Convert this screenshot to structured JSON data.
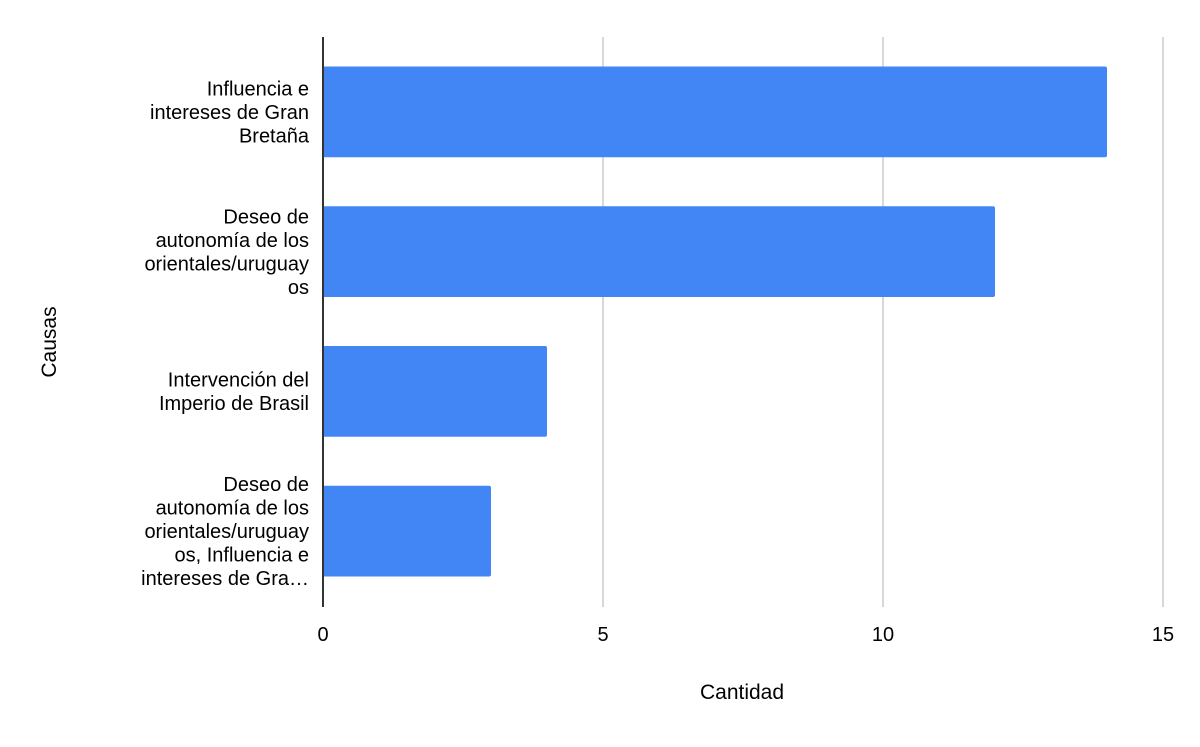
{
  "chart_data": {
    "type": "bar",
    "orientation": "horizontal",
    "xlabel": "Cantidad",
    "ylabel": "Causas",
    "xlim": [
      0,
      15
    ],
    "x_ticks": [
      "0",
      "5",
      "10",
      "15"
    ],
    "grid": "vertical",
    "legend": "none",
    "categories": [
      "Influencia e intereses de Gran Bretaña",
      "Deseo de autonomía de los orientales/uruguayos",
      "Intervención del Imperio de Brasil",
      "Deseo de autonomía de los orientales/uruguayos, Influencia e intereses de Gra…"
    ],
    "category_label_lines": [
      [
        "Influencia e",
        "intereses de Gran",
        "Bretaña"
      ],
      [
        "Deseo de",
        "autonomía de los",
        "orientales/uruguay",
        "os"
      ],
      [
        "Intervención del",
        "Imperio de Brasil"
      ],
      [
        "Deseo de",
        "autonomía de los",
        "orientales/uruguay",
        "os, Influencia e",
        "intereses de Gra…"
      ]
    ],
    "values": [
      14,
      12,
      4,
      3
    ],
    "colors": {
      "bar": "#4285f4",
      "grid": "#cccccc",
      "axis": "#333333",
      "text": "#000000"
    }
  }
}
